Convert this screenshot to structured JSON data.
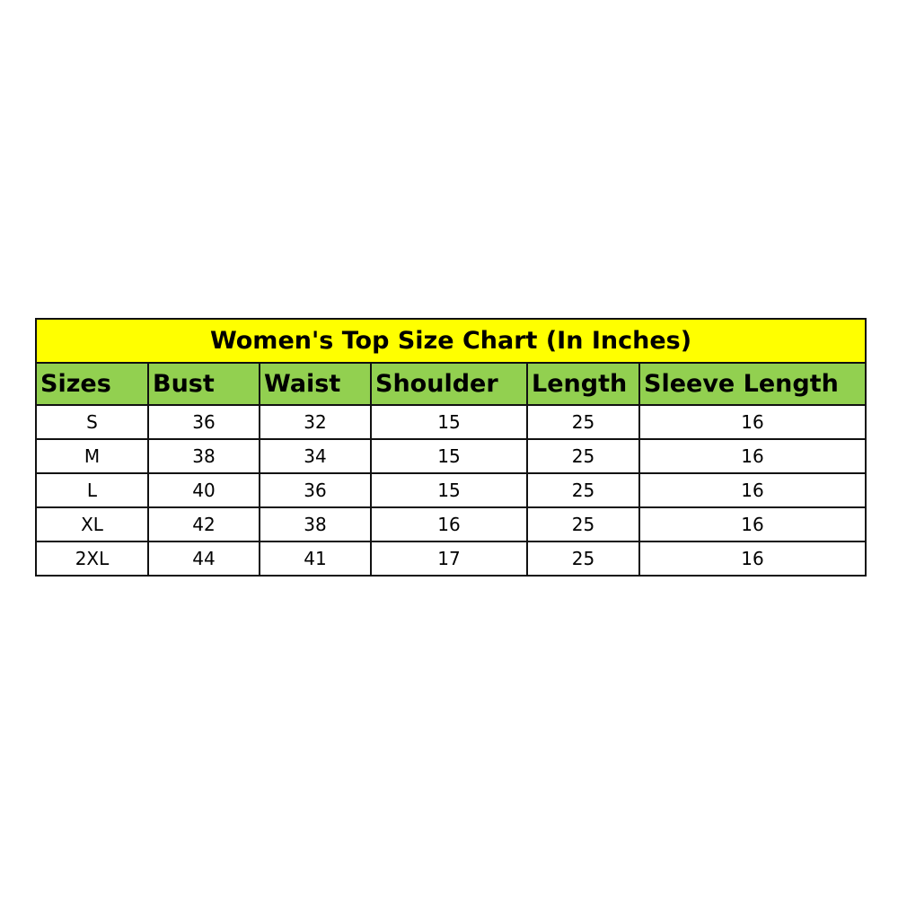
{
  "title": "Women's Top Size Chart (In Inches)",
  "colors": {
    "title_bg": "#ffff00",
    "header_bg": "#92d050",
    "border": "#111111"
  },
  "headers": [
    "Sizes",
    "Bust",
    "Waist",
    "Shoulder",
    "Length",
    "Sleeve Length"
  ],
  "rows": [
    [
      "S",
      "36",
      "32",
      "15",
      "25",
      "16"
    ],
    [
      "M",
      "38",
      "34",
      "15",
      "25",
      "16"
    ],
    [
      "L",
      "40",
      "36",
      "15",
      "25",
      "16"
    ],
    [
      "XL",
      "42",
      "38",
      "16",
      "25",
      "16"
    ],
    [
      "2XL",
      "44",
      "41",
      "17",
      "25",
      "16"
    ]
  ]
}
